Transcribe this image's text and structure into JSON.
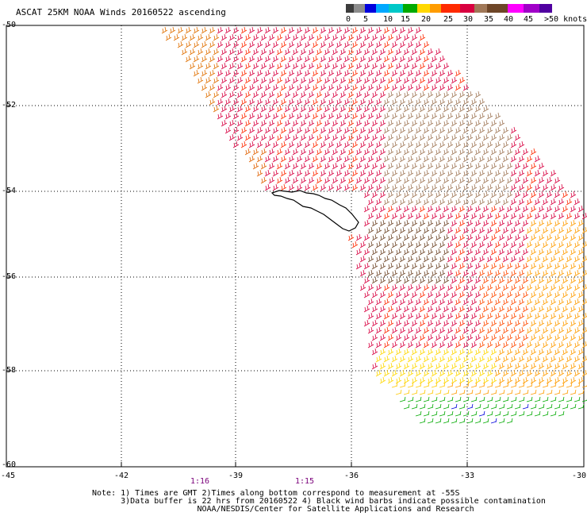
{
  "title": "ASCAT 25KM NOAA Winds 20160522 ascending",
  "legend": {
    "colors": [
      "#3c3c3c",
      "#8c8c8c",
      "#0000dd",
      "#00a8ff",
      "#00c8c8",
      "#00aa00",
      "#ffd800",
      "#ff9c00",
      "#ff2a00",
      "#d80040",
      "#a07858",
      "#6e4628",
      "#ff00ff",
      "#a000c8",
      "#5000a0"
    ],
    "ticks": [
      "0",
      "5",
      "10",
      "15",
      "20",
      "25",
      "30",
      "35",
      "40",
      "45"
    ],
    "unit": ">50 knots"
  },
  "axes": {
    "lat_labels": [
      "-50",
      "-52",
      "-54",
      "-56",
      "-58",
      "-60"
    ],
    "lon_labels": [
      "-45",
      "-42",
      "-39",
      "-36",
      "-33",
      "-30"
    ]
  },
  "time_labels": [
    "1:16",
    "1:15"
  ],
  "notes": {
    "line1": "Note: 1) Times are GMT 2)Times along bottom correspond to measurement at -55S",
    "line2": "      3)Data buffer is 22 hrs from 20160522 4) Black wind barbs indicate possible contamination",
    "line3": "                      NOAA/NESDIS/Center for Satellite Applications and Research"
  },
  "map": {
    "region": "South Georgia island",
    "wind_barbs": "ASCAT wind barbs colored by speed"
  }
}
